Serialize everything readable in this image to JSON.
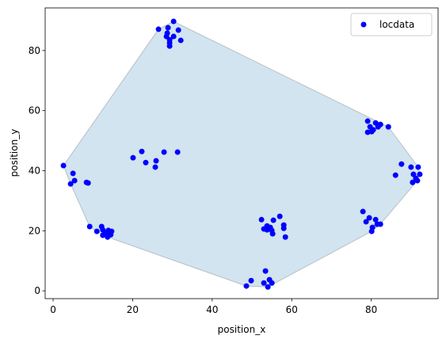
{
  "chart_data": {
    "type": "scatter",
    "xlabel": "position_x",
    "ylabel": "position_y",
    "xlim": [
      -2,
      96.8
    ],
    "ylim": [
      -2.6,
      94.2
    ],
    "xticks": [
      0,
      20,
      40,
      60,
      80
    ],
    "yticks": [
      0,
      20,
      40,
      60,
      80
    ],
    "legend": "upper right",
    "hull": true,
    "hull_color": "#1f77b4",
    "series": [
      {
        "name": "locdata",
        "color": "#0000ff",
        "x": [
          30.3,
          26.5,
          28.9,
          31.5,
          28.7,
          30.3,
          28.5,
          29.3,
          32.1,
          29.3,
          29.3,
          22.3,
          27.9,
          31.3,
          20.1,
          23.3,
          25.9,
          25.7,
          2.6,
          5.0,
          5.4,
          4.4,
          8.4,
          8.8,
          9.2,
          12.2,
          11.0,
          12.5,
          13.9,
          14.7,
          12.5,
          13.7,
          14.5,
          13.3,
          48.6,
          49.8,
          53.4,
          53.0,
          54.4,
          55.0,
          54.0,
          52.4,
          55.4,
          57.0,
          53.8,
          53.0,
          54.6,
          55.0,
          55.2,
          58.0,
          58.0,
          58.4,
          53.8,
          79.1,
          81.1,
          82.3,
          84.3,
          79.7,
          80.5,
          81.7,
          79.1,
          80.1,
          87.6,
          86.1,
          90.0,
          91.8,
          90.6,
          92.2,
          91.2,
          90.4,
          91.6,
          77.9,
          79.5,
          78.7,
          81.1,
          81.5,
          82.3,
          80.3,
          80.1
        ],
        "y": [
          89.7,
          87.1,
          87.6,
          86.8,
          85.8,
          84.7,
          84.7,
          83.6,
          83.4,
          82.6,
          81.5,
          46.4,
          46.2,
          46.2,
          44.3,
          42.7,
          43.3,
          41.2,
          41.7,
          39.1,
          36.7,
          35.6,
          36.1,
          35.9,
          21.4,
          21.4,
          19.8,
          20.3,
          20.1,
          19.8,
          18.5,
          17.9,
          18.7,
          19.3,
          1.6,
          3.4,
          6.6,
          2.6,
          3.7,
          2.6,
          1.3,
          23.7,
          23.5,
          24.8,
          21.6,
          20.6,
          21.1,
          20.1,
          19.0,
          21.9,
          20.8,
          17.9,
          20.3,
          56.5,
          55.9,
          55.4,
          54.6,
          54.6,
          53.6,
          54.6,
          52.8,
          53.0,
          42.2,
          38.5,
          41.2,
          41.2,
          38.8,
          38.8,
          37.5,
          36.1,
          36.7,
          26.4,
          24.3,
          23.0,
          23.7,
          22.2,
          22.2,
          21.1,
          19.8
        ]
      }
    ]
  }
}
